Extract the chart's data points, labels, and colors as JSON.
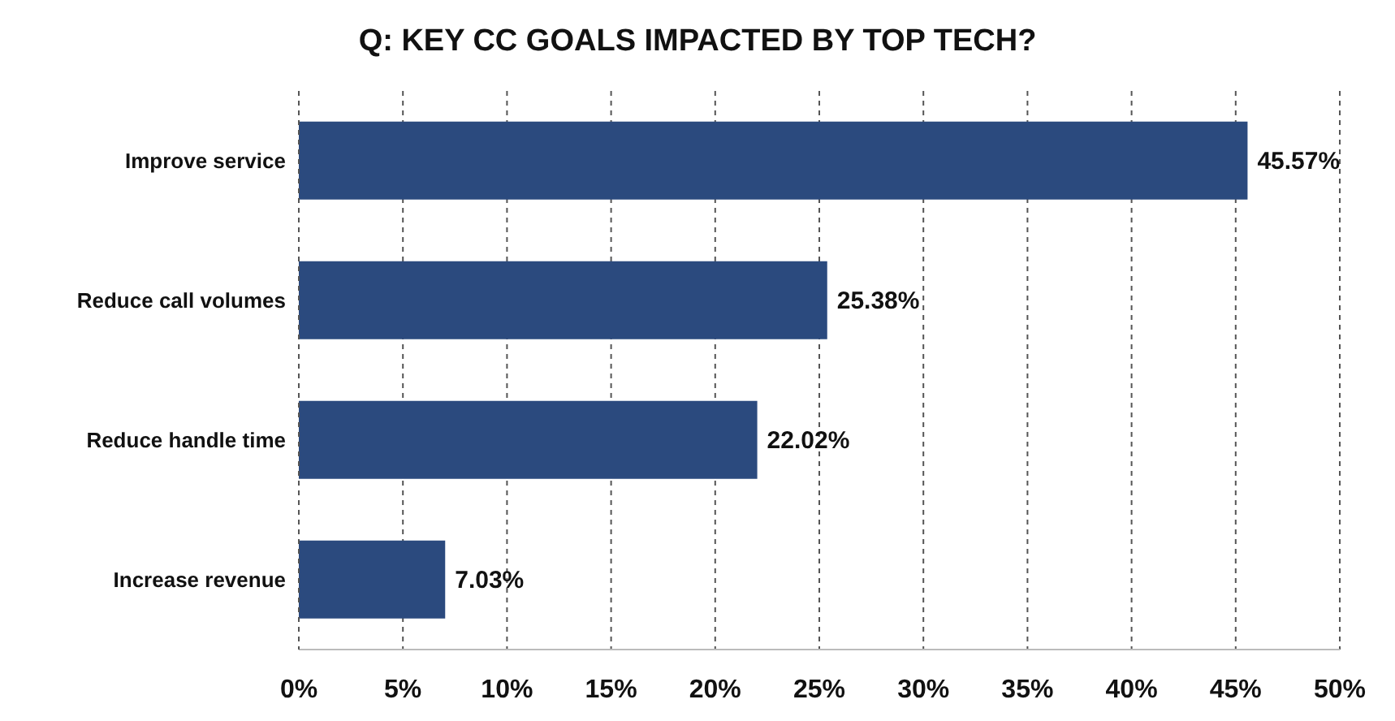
{
  "chart_data": {
    "type": "bar",
    "orientation": "horizontal",
    "title": "Q: KEY CC GOALS IMPACTED BY TOP TECH?",
    "categories": [
      "Improve service",
      "Reduce call volumes",
      "Reduce handle time",
      "Increase revenue"
    ],
    "values": [
      45.57,
      25.38,
      22.02,
      7.03
    ],
    "value_labels": [
      "45.57%",
      "25.38%",
      "22.02%",
      "7.03%"
    ],
    "color": "#2b4a7e",
    "xlim": [
      0,
      50
    ],
    "xticks": [
      {
        "value": 0,
        "label": "0%"
      },
      {
        "value": 5,
        "label": "5%"
      },
      {
        "value": 10,
        "label": "10%"
      },
      {
        "value": 15,
        "label": "15%"
      },
      {
        "value": 20,
        "label": "20%"
      },
      {
        "value": 25,
        "label": "25%"
      },
      {
        "value": 30,
        "label": "30%"
      },
      {
        "value": 35,
        "label": "35%"
      },
      {
        "value": 40,
        "label": "40%"
      },
      {
        "value": 45,
        "label": "45%"
      },
      {
        "value": 50,
        "label": "50%"
      }
    ],
    "grid": "x",
    "legend": false
  }
}
